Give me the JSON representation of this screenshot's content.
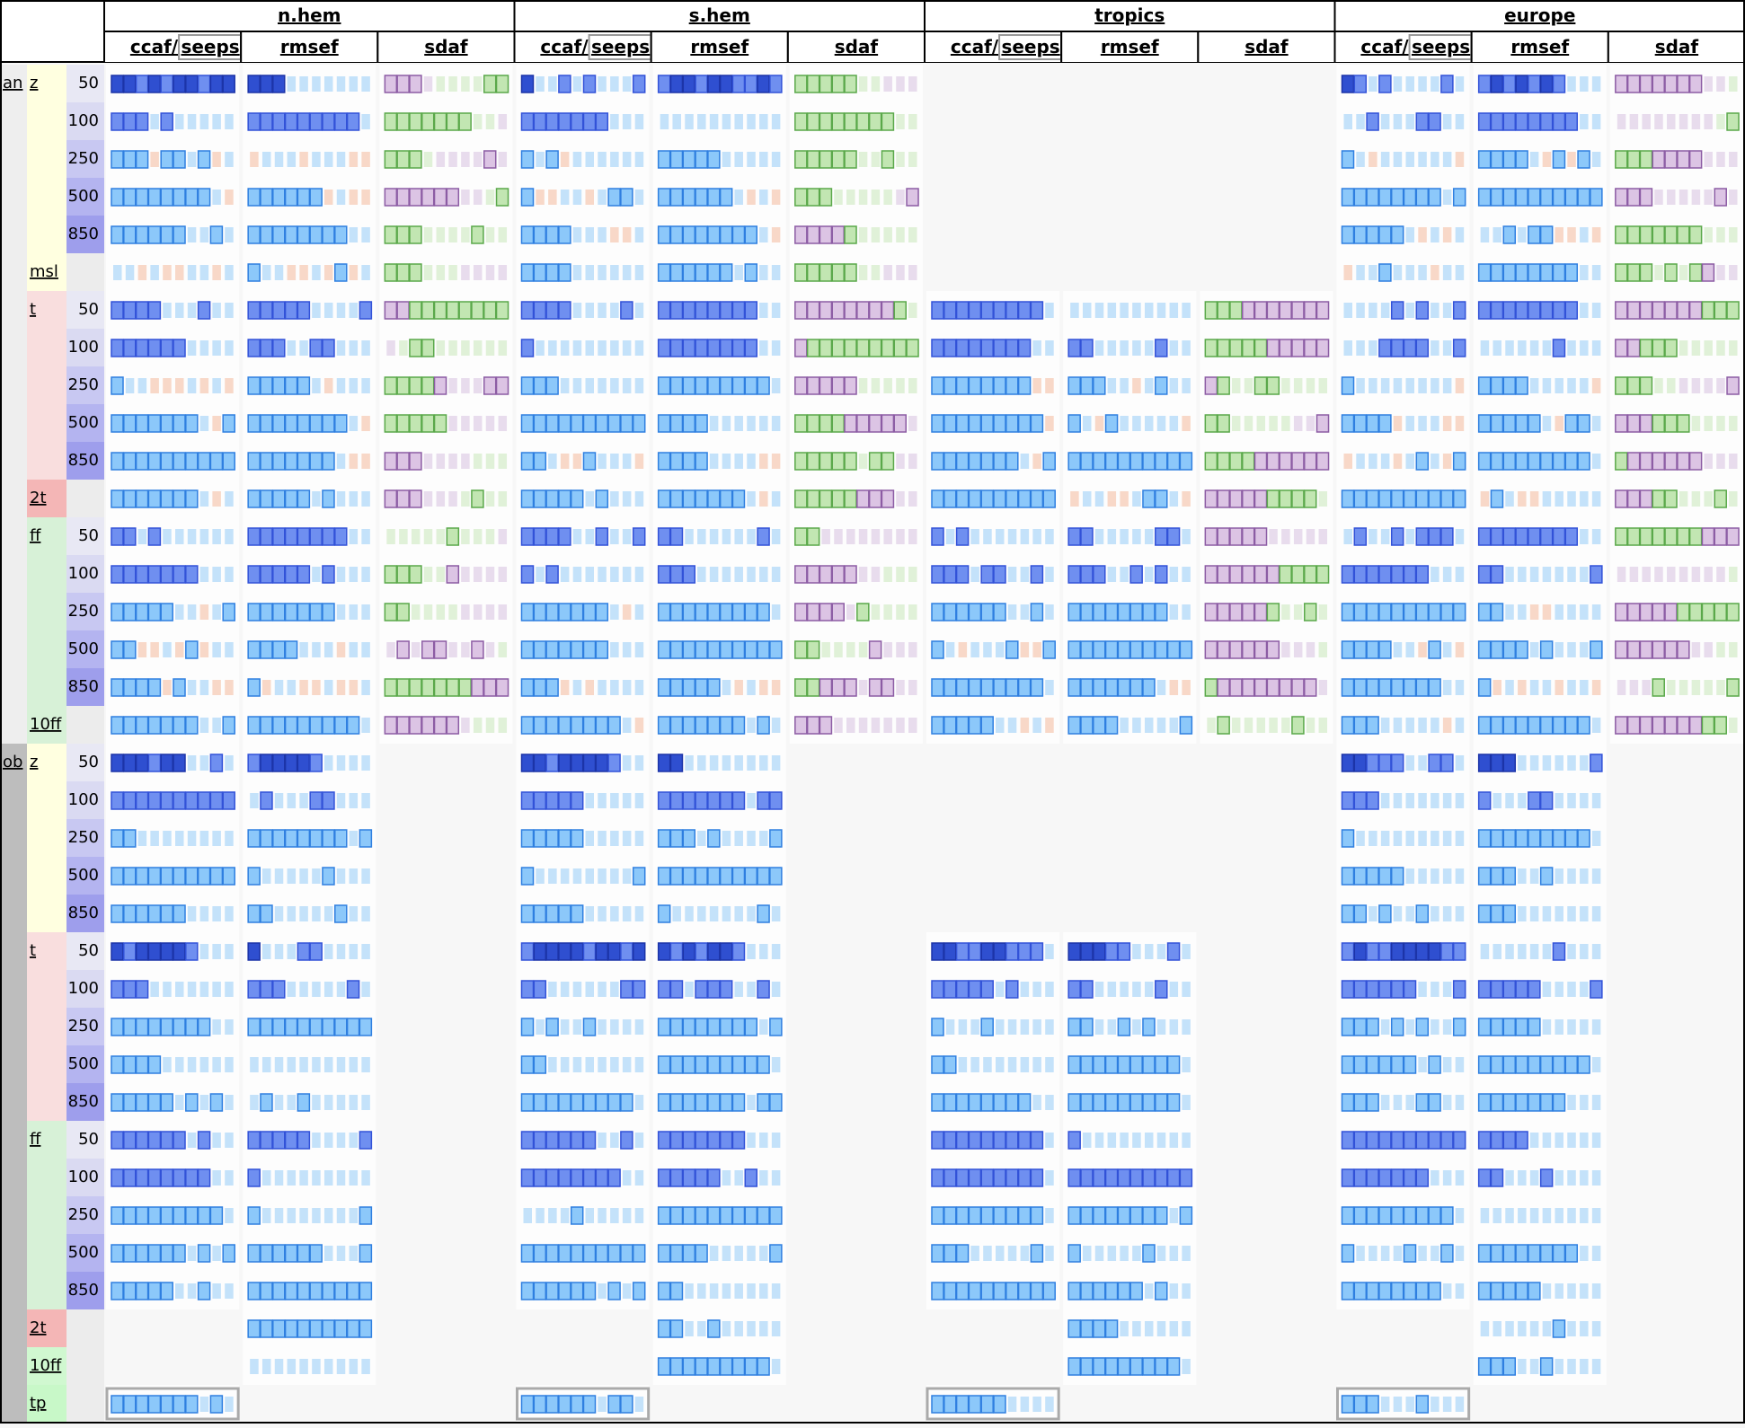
{
  "header": {
    "regions": [
      "n.hem",
      "s.hem",
      "tropics",
      "europe"
    ],
    "scores": {
      "ccaf": "ccaf/",
      "seeps": "seeps",
      "rmsef": "rmsef",
      "sdaf": "sdaf"
    }
  },
  "sections": [
    {
      "label": "an",
      "groups": [
        {
          "param": "z",
          "levels": [
            50,
            100,
            250,
            500,
            850
          ]
        },
        {
          "param": "msl",
          "levels": [
            null
          ]
        },
        {
          "param": "t",
          "levels": [
            50,
            100,
            250,
            500,
            850
          ]
        },
        {
          "param": "2t",
          "levels": [
            null
          ]
        },
        {
          "param": "ff",
          "levels": [
            50,
            100,
            250,
            500,
            850
          ]
        },
        {
          "param": "10ff",
          "levels": [
            null
          ]
        }
      ]
    },
    {
      "label": "ob",
      "groups": [
        {
          "param": "z",
          "levels": [
            50,
            100,
            250,
            500,
            850
          ]
        },
        {
          "param": "t",
          "levels": [
            50,
            100,
            250,
            500,
            850
          ]
        },
        {
          "param": "ff",
          "levels": [
            50,
            100,
            250,
            500,
            850
          ]
        },
        {
          "param": "2t",
          "levels": [
            null
          ]
        },
        {
          "param": "10ff",
          "levels": [
            null
          ]
        },
        {
          "param": "tp",
          "levels": [
            null
          ]
        }
      ]
    }
  ]
}
